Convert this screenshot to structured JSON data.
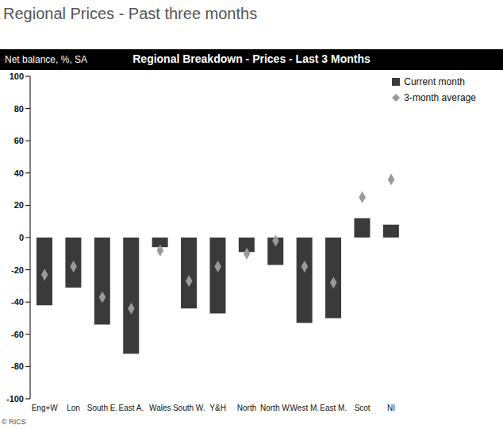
{
  "chart_data": {
    "type": "bar",
    "title": "Regional Prices - Past three months",
    "subtitle": "Regional Breakdown - Prices - Last 3 Months",
    "ylabel": "Net balance, %, SA",
    "annotations": [
      "© RICS"
    ],
    "categories": [
      "Eng+W",
      "Lon",
      "South E.",
      "East A.",
      "Wales",
      "South W.",
      "Y&H",
      "North",
      "North W.",
      "West M.",
      "East M.",
      "Scot",
      "NI"
    ],
    "series": [
      {
        "name": "Current month",
        "type": "bar",
        "color": "#3a3a3a",
        "values": [
          -42,
          -31,
          -54,
          -72,
          -6,
          -44,
          -47,
          -9,
          -17,
          -53,
          -50,
          12,
          8
        ]
      },
      {
        "name": "3-month average",
        "type": "scatter",
        "marker": "diamond",
        "color": "#9a9a9a",
        "values": [
          -23,
          -18,
          -37,
          -44,
          -8,
          -27,
          -18,
          -10,
          -2,
          -18,
          -28,
          25,
          36
        ]
      }
    ],
    "ylim": [
      -100,
      100
    ],
    "yticks": [
      -100,
      -80,
      -60,
      -40,
      -20,
      0,
      20,
      40,
      60,
      80,
      100
    ],
    "grid": false,
    "legend": "upper right"
  }
}
